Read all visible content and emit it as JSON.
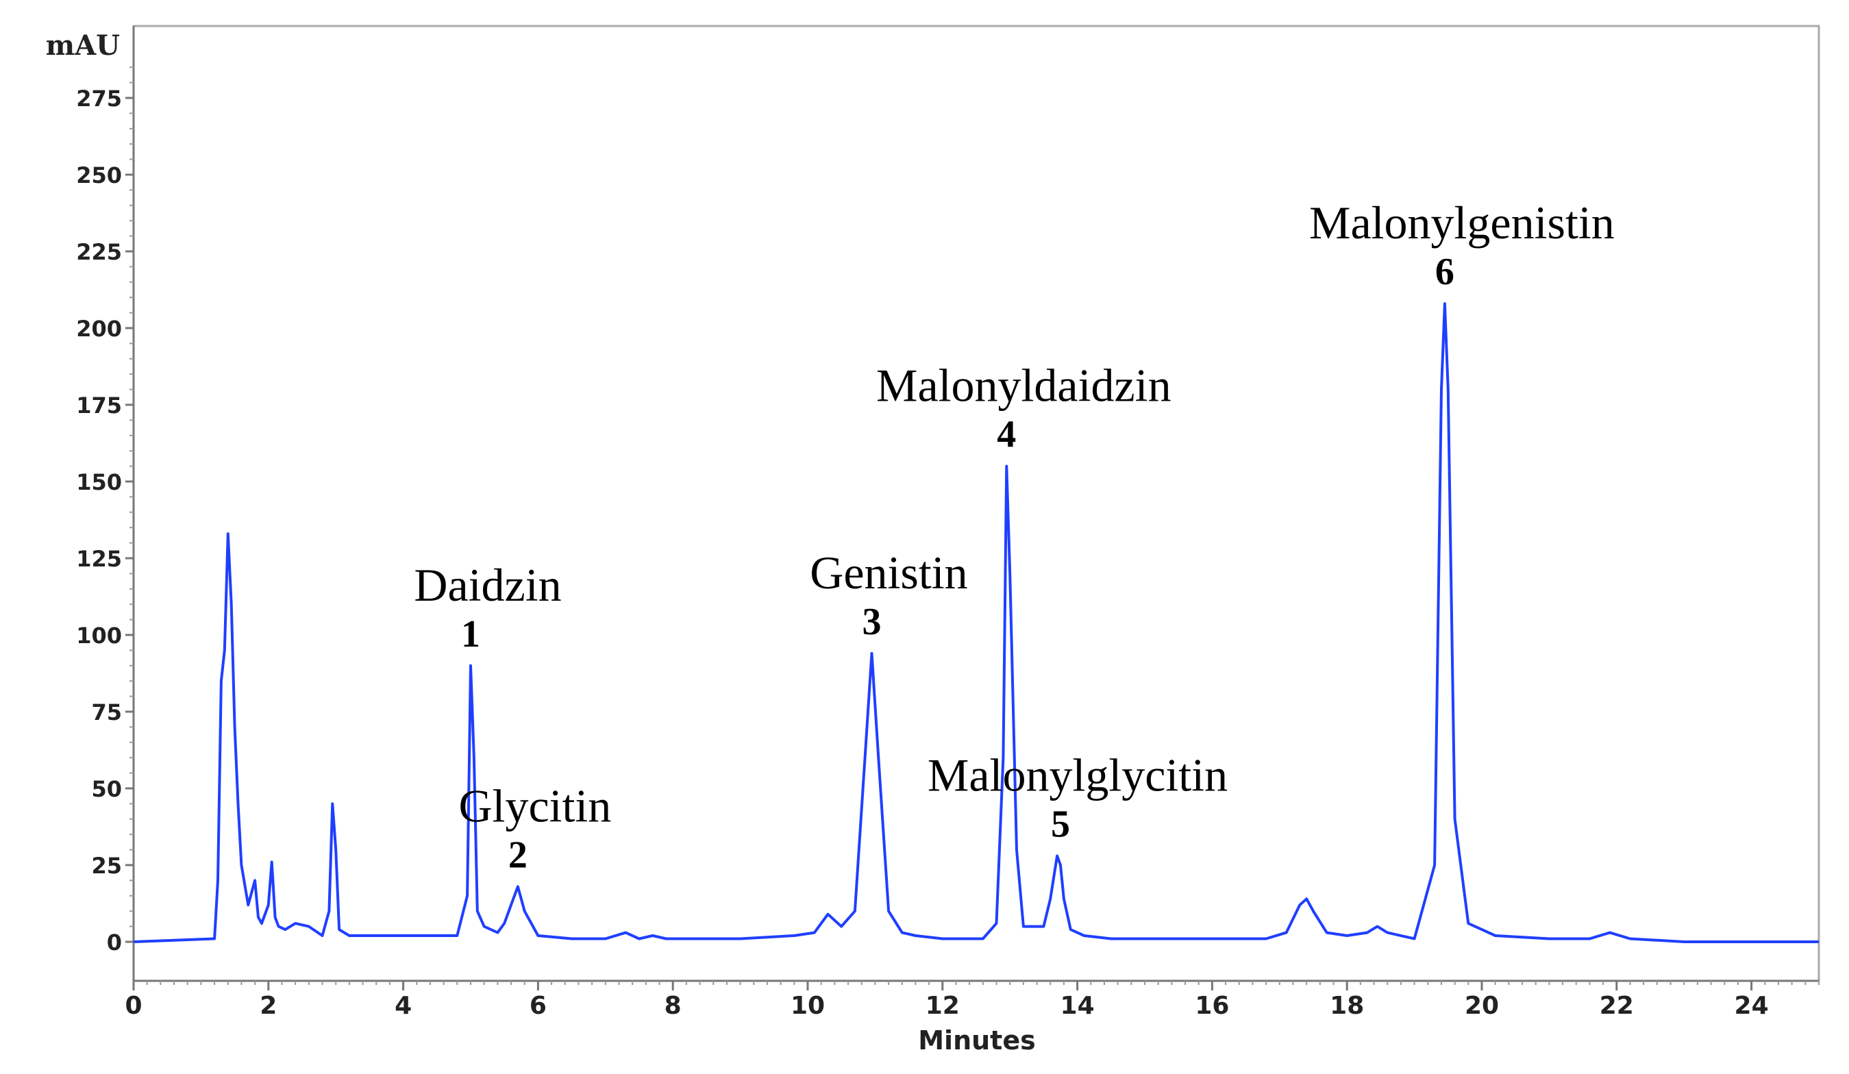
{
  "chart_data": {
    "type": "line",
    "ylabel": "mAU",
    "xlabel": "Minutes",
    "xlim": [
      0,
      25
    ],
    "ylim": [
      -10,
      295
    ],
    "y_ticks": [
      0,
      25,
      50,
      75,
      100,
      125,
      150,
      175,
      200,
      225,
      250,
      275
    ],
    "y_tick_labels": [
      "0",
      "25",
      "50",
      "75",
      "100",
      "125",
      "150",
      "175",
      "200",
      "225",
      "250",
      "275"
    ],
    "x_ticks": [
      0,
      2,
      4,
      6,
      8,
      10,
      12,
      14,
      16,
      18,
      20,
      22,
      24
    ],
    "x_tick_labels": [
      "0",
      "2",
      "4",
      "6",
      "8",
      "10",
      "12",
      "14",
      "16",
      "18",
      "20",
      "22",
      "24"
    ],
    "grid": false,
    "line_color": "#1f3fff",
    "series": [
      {
        "x": [
          0,
          1.2,
          1.25,
          1.3,
          1.35,
          1.4,
          1.45,
          1.5,
          1.55,
          1.6,
          1.7,
          1.8,
          1.85,
          1.9,
          2.0,
          2.05,
          2.1,
          2.15,
          2.25,
          2.4,
          2.6,
          2.8,
          2.9,
          2.95,
          3.0,
          3.05,
          3.2,
          3.4,
          3.6,
          3.8,
          4.0,
          4.2,
          4.4,
          4.6,
          4.8,
          4.95,
          5.0,
          5.05,
          5.1,
          5.2,
          5.4,
          5.5,
          5.6,
          5.7,
          5.8,
          6.0,
          6.5,
          7.0,
          7.3,
          7.5,
          7.7,
          7.9,
          8.2,
          9.0,
          9.8,
          10.1,
          10.3,
          10.5,
          10.7,
          10.85,
          10.95,
          11.05,
          11.2,
          11.4,
          11.6,
          12.0,
          12.6,
          12.8,
          12.9,
          12.95,
          13.0,
          13.1,
          13.2,
          13.5,
          13.6,
          13.7,
          13.75,
          13.8,
          13.9,
          14.1,
          14.5,
          15.0,
          16.0,
          16.8,
          17.1,
          17.3,
          17.4,
          17.5,
          17.7,
          18.0,
          18.3,
          18.45,
          18.6,
          19.0,
          19.3,
          19.4,
          19.45,
          19.5,
          19.6,
          19.8,
          20.2,
          21.0,
          21.6,
          21.9,
          22.2,
          23.0,
          25.0
        ],
        "y": [
          0,
          1,
          20,
          85,
          95,
          133,
          110,
          70,
          45,
          25,
          12,
          20,
          8,
          6,
          12,
          26,
          8,
          5,
          4,
          6,
          5,
          2,
          10,
          45,
          30,
          4,
          2,
          2,
          2,
          2,
          2,
          2,
          2,
          2,
          2,
          15,
          90,
          60,
          10,
          5,
          3,
          6,
          12,
          18,
          10,
          2,
          1,
          1,
          3,
          1,
          2,
          1,
          1,
          1,
          2,
          3,
          9,
          5,
          10,
          60,
          94,
          60,
          10,
          3,
          2,
          1,
          1,
          6,
          60,
          155,
          120,
          30,
          5,
          5,
          14,
          28,
          25,
          14,
          4,
          2,
          1,
          1,
          1,
          1,
          3,
          12,
          14,
          10,
          3,
          2,
          3,
          5,
          3,
          1,
          25,
          180,
          208,
          180,
          40,
          6,
          2,
          1,
          1,
          3,
          1,
          0,
          0
        ]
      }
    ],
    "annotations": [
      {
        "number": "1",
        "name": "Daidzin",
        "x": 5.0,
        "y": 90
      },
      {
        "number": "2",
        "name": "Glycitin",
        "x": 5.7,
        "y": 18
      },
      {
        "number": "3",
        "name": "Genistin",
        "x": 10.95,
        "y": 94
      },
      {
        "number": "4",
        "name": "Malonyldaidzin",
        "x": 12.95,
        "y": 155
      },
      {
        "number": "5",
        "name": "Malonylglycitin",
        "x": 13.75,
        "y": 28
      },
      {
        "number": "6",
        "name": "Malonylgenistin",
        "x": 19.45,
        "y": 208
      }
    ]
  }
}
